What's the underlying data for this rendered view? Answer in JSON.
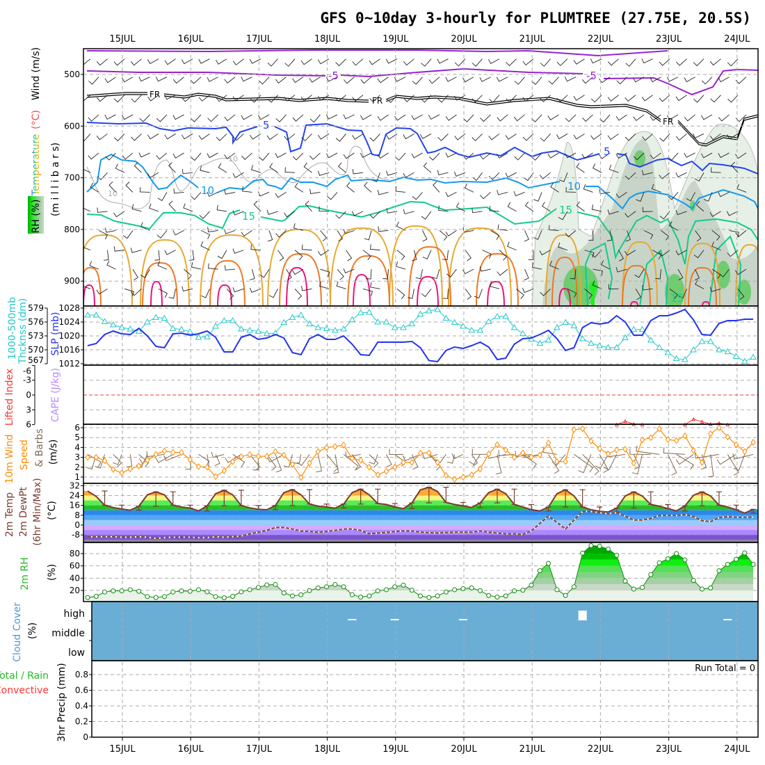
{
  "title": "GFS 0~10day 3-hourly for PLUMTREE (27.75E, 20.5S)",
  "dates": [
    "15JUL",
    "16JUL",
    "17JUL",
    "18JUL",
    "19JUL",
    "20JUL",
    "21JUL",
    "22JUL",
    "23JUL",
    "24JUL"
  ],
  "labels": {
    "wind": "Wind (m/s)",
    "temp_unit": "(°C)",
    "temperature": "Temperature",
    "rh": "RH (%)",
    "millibars": "(m i l l i b a r s)",
    "thickness1": "1000-500mb",
    "thickness2": "Thcknss (dm)",
    "slp": "SLP (mb)",
    "lifted_index": "Lifted Index",
    "cape": "CAPE (J/kg)",
    "wind10_1": "10m Wind",
    "wind10_2": "Speed",
    "wind10_3": "& Barbs",
    "wind10_unit": "(m/s)",
    "temp2m": "2m Temp",
    "dewpt2m": "2m DewPt",
    "minmax": "(6hr Min/Max)",
    "temp_unit2": "(°C)",
    "rh2m": "2m RH",
    "rh_unit": "(%)",
    "cloud": "Cloud Cover",
    "cloud_unit": "(%)",
    "cloud_high": "high",
    "cloud_middle": "middle",
    "cloud_low": "low",
    "precip": "3hr Precip (mm)",
    "total_rain": "Total / Rain",
    "convective": "Convective",
    "run_total": "Run Total = 0"
  },
  "contour_labels": {
    "minus5a": "-5",
    "minus5b": "-5",
    "fr1": "FR",
    "fr2": "FR",
    "fr3": "FR",
    "five1": "5",
    "five2": "5",
    "ten1": "10",
    "ten2": "10",
    "ten_grey1": "10",
    "ten_grey2": "10",
    "fifteen1": "15",
    "fifteen2": "15",
    "fifteen3": "15"
  },
  "colors": {
    "thickness": "#22c8c8",
    "slp": "#2233ee",
    "lifted_index": "#ff3333",
    "cape": "#bb88ff",
    "wind_speed": "#ff8c00",
    "barbs": "#806a50",
    "temp": "#7a3a30",
    "rh": "#118811",
    "cloud": "#6aaed6"
  },
  "chart_data": [
    {
      "type": "contour",
      "title": "Pressure-level cross section",
      "ylabel": "millibars",
      "yticks": [
        500,
        600,
        700,
        800,
        900
      ],
      "ylim": [
        450,
        950
      ],
      "contours": [
        "temperature -5",
        "freezing level FR",
        "temperature 5",
        "temperature 10",
        "temperature 15",
        "RH shading"
      ]
    },
    {
      "type": "line",
      "title": "1000-500mb Thickness (dm) / SLP (mb)",
      "time_step_hours": 3,
      "thickness_ticks": [
        579,
        576,
        573,
        570,
        567
      ],
      "slp_ticks": [
        1028,
        1024,
        1020,
        1016,
        1012
      ],
      "thickness": [
        577.5,
        577.5,
        576.1,
        575.4,
        574.8,
        574.5,
        574,
        576,
        577,
        576.8,
        574.6,
        574.4,
        573.9,
        572.7,
        572.8,
        575.1,
        576.3,
        576.3,
        574.5,
        574.2,
        574,
        573.5,
        573.6,
        575.9,
        577,
        577.5,
        575.6,
        574.8,
        574.6,
        574.2,
        574.5,
        576.5,
        578,
        578.1,
        576,
        576,
        574.8,
        574.8,
        575.6,
        577.7,
        578.4,
        578.7,
        576.8,
        575.9,
        575.1,
        574.2,
        574.2,
        576.1,
        577.2,
        577.2,
        574.8,
        573.5,
        572.3,
        571.4,
        572.1,
        574.8,
        575.9,
        575.2,
        572.4,
        571.4,
        570.9,
        570.5,
        570.5,
        572.6,
        574.4,
        574.4,
        572.1,
        570.5,
        569.4,
        568.1,
        567.9,
        570,
        571.8,
        571.8,
        570,
        569.6,
        568.6,
        567.5,
        568.4
      ],
      "slp": [
        1017.2,
        1017.8,
        1020.4,
        1021.4,
        1020.6,
        1020.4,
        1022.2,
        1020,
        1017,
        1016.6,
        1020.6,
        1020.8,
        1020.2,
        1020.6,
        1021.4,
        1019.6,
        1015.4,
        1015.4,
        1019.6,
        1020.4,
        1019,
        1019.4,
        1020.4,
        1019.4,
        1015.2,
        1014.6,
        1019.2,
        1020.4,
        1019,
        1019,
        1020,
        1017.6,
        1014.6,
        1014.4,
        1018.2,
        1018.2,
        1018.2,
        1018.2,
        1018.4,
        1016.6,
        1012.9,
        1012.6,
        1015.8,
        1016.8,
        1016.4,
        1017.2,
        1018.2,
        1016.8,
        1013.2,
        1013.6,
        1017.6,
        1019.2,
        1019.4,
        1020.4,
        1021.6,
        1019.2,
        1015.8,
        1016.6,
        1022.4,
        1023.8,
        1023.4,
        1023.8,
        1025.8,
        1024,
        1020.2,
        1020.2,
        1024.4,
        1025.8,
        1025.8,
        1026.6,
        1027.6,
        1024.6,
        1020.4,
        1020.2,
        1023.6,
        1024.4,
        1024.4,
        1024.8,
        1024.8
      ]
    },
    {
      "type": "line",
      "title": "Lifted Index / CAPE (J/kg)",
      "li_ticks": [
        -6,
        -3,
        0,
        3,
        6
      ],
      "lifted_index_points": [
        [
          62,
          6
        ],
        [
          63,
          5.3
        ],
        [
          64,
          5.9
        ],
        [
          65,
          6
        ],
        [
          70,
          6
        ],
        [
          71,
          4.9
        ],
        [
          72,
          5.4
        ],
        [
          73,
          5.9
        ],
        [
          74,
          5.7
        ],
        [
          75,
          6
        ]
      ],
      "cape": 0
    },
    {
      "type": "line",
      "title": "10m Wind Speed & Barbs (m/s)",
      "yticks": [
        6,
        5,
        4,
        3,
        2,
        1
      ],
      "values": [
        3.0,
        3.0,
        2.65,
        1.77,
        1.42,
        1.82,
        2.13,
        2.71,
        3.3,
        3.65,
        3.5,
        3.5,
        2.76,
        2.06,
        2.0,
        1.05,
        1.63,
        2.57,
        3.07,
        3.28,
        3.11,
        3.11,
        3.58,
        3.23,
        2.29,
        0.95,
        2.41,
        3.58,
        3.98,
        4.1,
        4.24,
        2.88,
        2.71,
        2.0,
        1.23,
        1.59,
        2.0,
        2.48,
        2.48,
        3.42,
        3.46,
        2.48,
        1.16,
        0.77,
        1.0,
        1.23,
        1.82,
        3.35,
        4.29,
        3.75,
        3.0,
        3.46,
        3.04,
        3.23,
        4.45,
        2.57,
        2.57,
        5.81,
        5.88,
        4.64,
        3.89,
        3.35,
        3.75,
        3.82,
        2.41,
        4.76,
        4.99,
        5.88,
        4.8,
        4.69,
        5.18,
        3.7,
        2.48,
        5.39,
        6.0,
        5.06,
        4.29,
        3.58,
        4.52
      ]
    },
    {
      "type": "area",
      "title": "2m Temp / 2m DewPt / (6hr Min/Max) (°C)",
      "yticks": [
        32,
        24,
        16,
        8,
        0,
        -8
      ],
      "temp": [
        27.7,
        23.3,
        16.2,
        14.3,
        13,
        12.1,
        15.3,
        24.6,
        27,
        24.6,
        16.2,
        14.7,
        13.8,
        11.5,
        15.6,
        25.5,
        28.3,
        24.6,
        15.8,
        14,
        12.8,
        12.5,
        15.8,
        26.4,
        28.8,
        24.6,
        17.1,
        15.3,
        14.7,
        13.8,
        17.1,
        26.4,
        29.2,
        24.6,
        17.5,
        16.7,
        14.7,
        13.4,
        18,
        28.6,
        30.7,
        27.3,
        18.4,
        16.7,
        15.6,
        14.3,
        18,
        26.4,
        29.2,
        25.5,
        16.7,
        14.7,
        12.5,
        11.5,
        14.7,
        25.5,
        28.7,
        23.6,
        14.7,
        12.5,
        11.2,
        10.6,
        13.8,
        23.6,
        27,
        23.6,
        16.7,
        15.3,
        13.4,
        11.5,
        15.6,
        24.2,
        27,
        23.6,
        16.2,
        14.7,
        12.5,
        9.7,
        12.8
      ],
      "dewpoint": [
        -9.5,
        -9.5,
        -9.5,
        -9.5,
        -9.9,
        -9.9,
        -9.5,
        -9.9,
        -10.8,
        -10.2,
        -9.9,
        -9.9,
        -9.9,
        -10.2,
        -10.2,
        -9.5,
        -9.9,
        -9.5,
        -8.9,
        -7.1,
        -5.8,
        -4.3,
        -2,
        -2,
        -3.3,
        -4.8,
        -5.2,
        -5.8,
        -5.2,
        -4.3,
        -3.3,
        -3.3,
        -4.3,
        -7.1,
        -6.5,
        -6.1,
        -5.2,
        -4.8,
        -4.8,
        -5.8,
        -6.1,
        -6.5,
        -6.1,
        -5.8,
        -5.8,
        -5.8,
        -4.8,
        -5.8,
        -6.5,
        -7.1,
        -7.1,
        -7.6,
        -4.7,
        1.3,
        7.3,
        2.2,
        -3.3,
        4.1,
        11,
        11,
        10,
        9.1,
        10,
        7.3,
        4.1,
        4.1,
        5.4,
        7.8,
        7.8,
        7.8,
        8.4,
        6.9,
        3.5,
        2.8,
        6,
        6.9,
        6.3,
        6.3,
        6.5
      ]
    },
    {
      "type": "area",
      "title": "2m RH (%)",
      "yticks": [
        80,
        60,
        40,
        20
      ],
      "values": [
        8.5,
        10.4,
        17.4,
        19.3,
        19.3,
        21.2,
        18.6,
        10,
        8.5,
        10,
        17.4,
        19.3,
        18.6,
        21.2,
        17.8,
        10,
        8.1,
        10.4,
        17.8,
        21.2,
        24.9,
        29,
        29.7,
        15.9,
        11.1,
        13,
        19.7,
        24.1,
        26,
        29.7,
        26,
        13,
        9.2,
        11.1,
        19.3,
        21.2,
        26,
        28.6,
        20.4,
        11.1,
        8.5,
        11.1,
        17.4,
        21.2,
        23,
        24.1,
        19.7,
        11.8,
        9.2,
        11.1,
        19.3,
        20.4,
        28.6,
        52.1,
        64,
        21.2,
        11.8,
        26,
        80.7,
        93,
        91.9,
        87.4,
        77.4,
        35.3,
        22.3,
        24.9,
        45.7,
        65.1,
        71.4,
        80,
        69.9,
        36.4,
        22.3,
        24.1,
        52.1,
        62.5,
        70.7,
        81.1,
        62.5
      ]
    },
    {
      "type": "heatmap",
      "title": "Cloud Cover (%)",
      "rows": [
        "high",
        "middle",
        "low"
      ],
      "cover_percent": 100,
      "high_gaps": [
        31,
        36,
        44,
        58,
        75
      ],
      "middle_gaps": [
        58
      ]
    },
    {
      "type": "bar",
      "title": "3hr Precip (mm)",
      "yticks": [
        0.8,
        0.6,
        0.4,
        0.2,
        0
      ],
      "ylim": [
        0,
        0.95
      ],
      "values": "all 0",
      "run_total": 0
    }
  ]
}
